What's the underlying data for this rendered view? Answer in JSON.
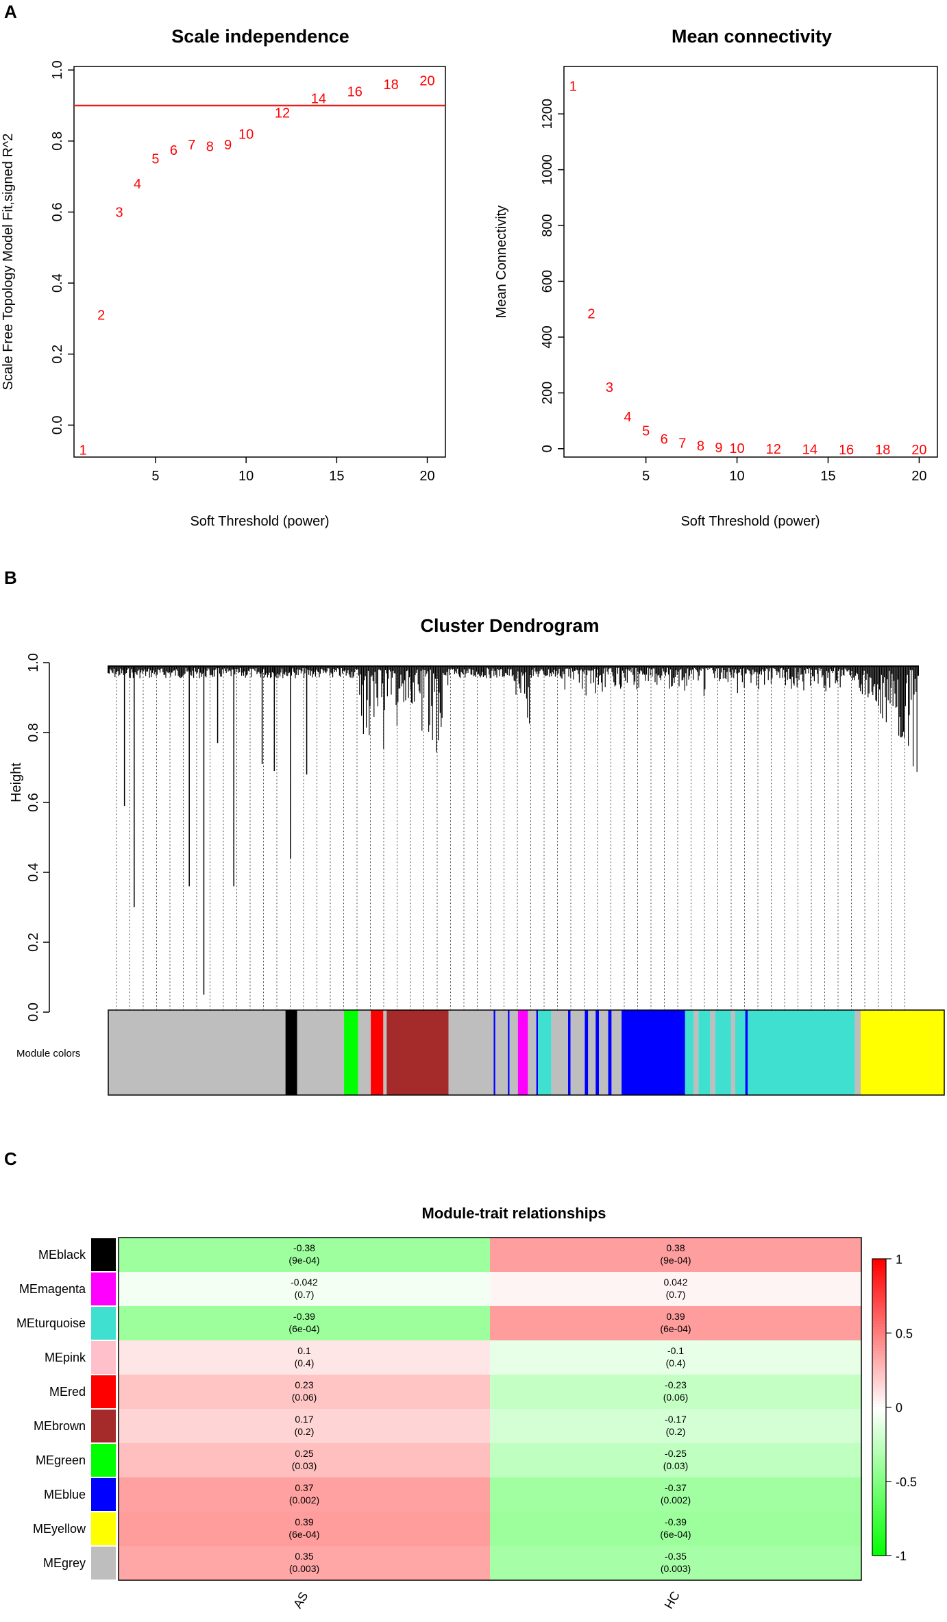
{
  "panels": {
    "a": "A",
    "b": "B",
    "c": "C"
  },
  "chart_data": [
    {
      "id": "scale-independence",
      "type": "scatter",
      "title": "Scale independence",
      "xlabel": "Soft Threshold (power)",
      "ylabel": "Scale Free Topology Model Fit,signed R^2",
      "xlim": [
        0.5,
        21
      ],
      "ylim": [
        -0.09,
        1.01
      ],
      "xticks": [
        5,
        10,
        15,
        20
      ],
      "yticks": [
        0.0,
        0.2,
        0.4,
        0.6,
        0.8,
        1.0
      ],
      "ytick_labels": [
        "0.0",
        "0.2",
        "0.4",
        "0.6",
        "0.8",
        "1.0"
      ],
      "reference_line": {
        "y": 0.9,
        "color": "#e8201c"
      },
      "points": [
        {
          "x": 1,
          "y": -0.07,
          "label": "1"
        },
        {
          "x": 2,
          "y": 0.31,
          "label": "2"
        },
        {
          "x": 3,
          "y": 0.6,
          "label": "3"
        },
        {
          "x": 4,
          "y": 0.68,
          "label": "4"
        },
        {
          "x": 5,
          "y": 0.75,
          "label": "5"
        },
        {
          "x": 6,
          "y": 0.775,
          "label": "6"
        },
        {
          "x": 7,
          "y": 0.79,
          "label": "7"
        },
        {
          "x": 8,
          "y": 0.785,
          "label": "8"
        },
        {
          "x": 9,
          "y": 0.79,
          "label": "9"
        },
        {
          "x": 10,
          "y": 0.82,
          "label": "10"
        },
        {
          "x": 12,
          "y": 0.88,
          "label": "12"
        },
        {
          "x": 14,
          "y": 0.92,
          "label": "14"
        },
        {
          "x": 16,
          "y": 0.94,
          "label": "16"
        },
        {
          "x": 18,
          "y": 0.96,
          "label": "18"
        },
        {
          "x": 20,
          "y": 0.97,
          "label": "20"
        }
      ]
    },
    {
      "id": "mean-connectivity",
      "type": "scatter",
      "title": "Mean connectivity",
      "xlabel": "Soft Threshold (power)",
      "ylabel": "Mean Connectivity",
      "xlim": [
        0.5,
        21
      ],
      "ylim": [
        -30,
        1370
      ],
      "xticks": [
        5,
        10,
        15,
        20
      ],
      "yticks": [
        0,
        200,
        400,
        600,
        800,
        1000,
        1200
      ],
      "ytick_labels": [
        "0",
        "200",
        "400",
        "600",
        "800",
        "1000",
        "1200"
      ],
      "points": [
        {
          "x": 1,
          "y": 1300,
          "label": "1"
        },
        {
          "x": 2,
          "y": 485,
          "label": "2"
        },
        {
          "x": 3,
          "y": 220,
          "label": "3"
        },
        {
          "x": 4,
          "y": 115,
          "label": "4"
        },
        {
          "x": 5,
          "y": 65,
          "label": "5"
        },
        {
          "x": 6,
          "y": 35,
          "label": "6"
        },
        {
          "x": 7,
          "y": 20,
          "label": "7"
        },
        {
          "x": 8,
          "y": 10,
          "label": "8"
        },
        {
          "x": 9,
          "y": 4,
          "label": "9"
        },
        {
          "x": 10,
          "y": 2,
          "label": "10"
        },
        {
          "x": 12,
          "y": 0,
          "label": "12"
        },
        {
          "x": 14,
          "y": -2,
          "label": "14"
        },
        {
          "x": 16,
          "y": -3,
          "label": "16"
        },
        {
          "x": 18,
          "y": -3,
          "label": "18"
        },
        {
          "x": 20,
          "y": -3,
          "label": "20"
        }
      ]
    },
    {
      "id": "cluster-dendrogram",
      "type": "dendrogram",
      "title": "Cluster Dendrogram",
      "ylabel": "Height",
      "xlabel": "",
      "ylim": [
        0.0,
        1.0
      ],
      "yticks": [
        0.0,
        0.2,
        0.4,
        0.6,
        0.8,
        1.0
      ],
      "ytick_labels": [
        "0.0",
        "0.2",
        "0.4",
        "0.6",
        "0.8",
        "1.0"
      ],
      "color_bar_label": "Module colors",
      "module_segments": [
        {
          "module": "grey",
          "color": "#bebebe",
          "from": 0.0,
          "to": 0.212
        },
        {
          "module": "black",
          "color": "#000000",
          "from": 0.212,
          "to": 0.226
        },
        {
          "module": "grey",
          "color": "#bebebe",
          "from": 0.226,
          "to": 0.282
        },
        {
          "module": "green",
          "color": "#00ff00",
          "from": 0.282,
          "to": 0.299
        },
        {
          "module": "grey",
          "color": "#bebebe",
          "from": 0.299,
          "to": 0.314
        },
        {
          "module": "red",
          "color": "#ff0000",
          "from": 0.314,
          "to": 0.329
        },
        {
          "module": "grey",
          "color": "#bebebe",
          "from": 0.329,
          "to": 0.333
        },
        {
          "module": "brown",
          "color": "#a52a2a",
          "from": 0.333,
          "to": 0.407
        },
        {
          "module": "grey",
          "color": "#bebebe",
          "from": 0.407,
          "to": 0.461
        },
        {
          "module": "blue",
          "color": "#0000ff",
          "from": 0.461,
          "to": 0.463
        },
        {
          "module": "grey",
          "color": "#bebebe",
          "from": 0.463,
          "to": 0.478
        },
        {
          "module": "blue",
          "color": "#0000ff",
          "from": 0.478,
          "to": 0.48
        },
        {
          "module": "grey",
          "color": "#bebebe",
          "from": 0.48,
          "to": 0.49
        },
        {
          "module": "magenta",
          "color": "#ff00ff",
          "from": 0.49,
          "to": 0.502
        },
        {
          "module": "grey",
          "color": "#bebebe",
          "from": 0.502,
          "to": 0.512
        },
        {
          "module": "blue",
          "color": "#0000ff",
          "from": 0.512,
          "to": 0.514
        },
        {
          "module": "turquoise",
          "color": "#40e0d0",
          "from": 0.514,
          "to": 0.53
        },
        {
          "module": "grey",
          "color": "#bebebe",
          "from": 0.53,
          "to": 0.55
        },
        {
          "module": "blue",
          "color": "#0000ff",
          "from": 0.55,
          "to": 0.553
        },
        {
          "module": "grey",
          "color": "#bebebe",
          "from": 0.553,
          "to": 0.57
        },
        {
          "module": "blue",
          "color": "#0000ff",
          "from": 0.57,
          "to": 0.574
        },
        {
          "module": "grey",
          "color": "#bebebe",
          "from": 0.574,
          "to": 0.583
        },
        {
          "module": "blue",
          "color": "#0000ff",
          "from": 0.583,
          "to": 0.587
        },
        {
          "module": "grey",
          "color": "#bebebe",
          "from": 0.587,
          "to": 0.598
        },
        {
          "module": "blue",
          "color": "#0000ff",
          "from": 0.598,
          "to": 0.602
        },
        {
          "module": "grey",
          "color": "#bebebe",
          "from": 0.602,
          "to": 0.614
        },
        {
          "module": "blue",
          "color": "#0000ff",
          "from": 0.614,
          "to": 0.69
        },
        {
          "module": "turquoise",
          "color": "#40e0d0",
          "from": 0.69,
          "to": 0.7
        },
        {
          "module": "grey",
          "color": "#bebebe",
          "from": 0.7,
          "to": 0.706
        },
        {
          "module": "turquoise",
          "color": "#40e0d0",
          "from": 0.706,
          "to": 0.72
        },
        {
          "module": "grey",
          "color": "#bebebe",
          "from": 0.72,
          "to": 0.726
        },
        {
          "module": "turquoise",
          "color": "#40e0d0",
          "from": 0.726,
          "to": 0.745
        },
        {
          "module": "grey",
          "color": "#bebebe",
          "from": 0.745,
          "to": 0.75
        },
        {
          "module": "turquoise",
          "color": "#40e0d0",
          "from": 0.75,
          "to": 0.762
        },
        {
          "module": "blue",
          "color": "#0000ff",
          "from": 0.762,
          "to": 0.765
        },
        {
          "module": "turquoise",
          "color": "#40e0d0",
          "from": 0.765,
          "to": 0.893
        },
        {
          "module": "grey",
          "color": "#bebebe",
          "from": 0.893,
          "to": 0.9
        },
        {
          "module": "yellow",
          "color": "#ffff00",
          "from": 0.9,
          "to": 1.0
        }
      ]
    },
    {
      "id": "module-trait-relationships",
      "type": "heatmap",
      "title": "Module-trait relationships",
      "columns": [
        "AS",
        "HC"
      ],
      "rows": [
        {
          "module": "MEblack",
          "color": "#000000",
          "cells": [
            {
              "value": -0.38,
              "text": "-0.38",
              "p": "(9e-04)"
            },
            {
              "value": 0.38,
              "text": "0.38",
              "p": "(9e-04)"
            }
          ]
        },
        {
          "module": "MEmagenta",
          "color": "#ff00ff",
          "cells": [
            {
              "value": -0.042,
              "text": "-0.042",
              "p": "(0.7)"
            },
            {
              "value": 0.042,
              "text": "0.042",
              "p": "(0.7)"
            }
          ]
        },
        {
          "module": "MEturquoise",
          "color": "#40e0d0",
          "cells": [
            {
              "value": -0.39,
              "text": "-0.39",
              "p": "(6e-04)"
            },
            {
              "value": 0.39,
              "text": "0.39",
              "p": "(6e-04)"
            }
          ]
        },
        {
          "module": "MEpink",
          "color": "#ffc0cb",
          "cells": [
            {
              "value": 0.1,
              "text": "0.1",
              "p": "(0.4)"
            },
            {
              "value": -0.1,
              "text": "-0.1",
              "p": "(0.4)"
            }
          ]
        },
        {
          "module": "MEred",
          "color": "#ff0000",
          "cells": [
            {
              "value": 0.23,
              "text": "0.23",
              "p": "(0.06)"
            },
            {
              "value": -0.23,
              "text": "-0.23",
              "p": "(0.06)"
            }
          ]
        },
        {
          "module": "MEbrown",
          "color": "#a52a2a",
          "cells": [
            {
              "value": 0.17,
              "text": "0.17",
              "p": "(0.2)"
            },
            {
              "value": -0.17,
              "text": "-0.17",
              "p": "(0.2)"
            }
          ]
        },
        {
          "module": "MEgreen",
          "color": "#00ff00",
          "cells": [
            {
              "value": 0.25,
              "text": "0.25",
              "p": "(0.03)"
            },
            {
              "value": -0.25,
              "text": "-0.25",
              "p": "(0.03)"
            }
          ]
        },
        {
          "module": "MEblue",
          "color": "#0000ff",
          "cells": [
            {
              "value": 0.37,
              "text": "0.37",
              "p": "(0.002)"
            },
            {
              "value": -0.37,
              "text": "-0.37",
              "p": "(0.002)"
            }
          ]
        },
        {
          "module": "MEyellow",
          "color": "#ffff00",
          "cells": [
            {
              "value": 0.39,
              "text": "0.39",
              "p": "(6e-04)"
            },
            {
              "value": -0.39,
              "text": "-0.39",
              "p": "(6e-04)"
            }
          ]
        },
        {
          "module": "MEgrey",
          "color": "#bebebe",
          "cells": [
            {
              "value": 0.35,
              "text": "0.35",
              "p": "(0.003)"
            },
            {
              "value": -0.35,
              "text": "-0.35",
              "p": "(0.003)"
            }
          ]
        }
      ],
      "legend": {
        "range": [
          -1,
          1
        ],
        "ticks": [
          1,
          0.5,
          0,
          -0.5,
          -1
        ],
        "tick_labels": [
          "1",
          "0.5",
          "0",
          "-0.5",
          "-1"
        ],
        "low_color": "#00ff00",
        "mid_color": "#ffffff",
        "high_color": "#ff0000"
      }
    }
  ]
}
